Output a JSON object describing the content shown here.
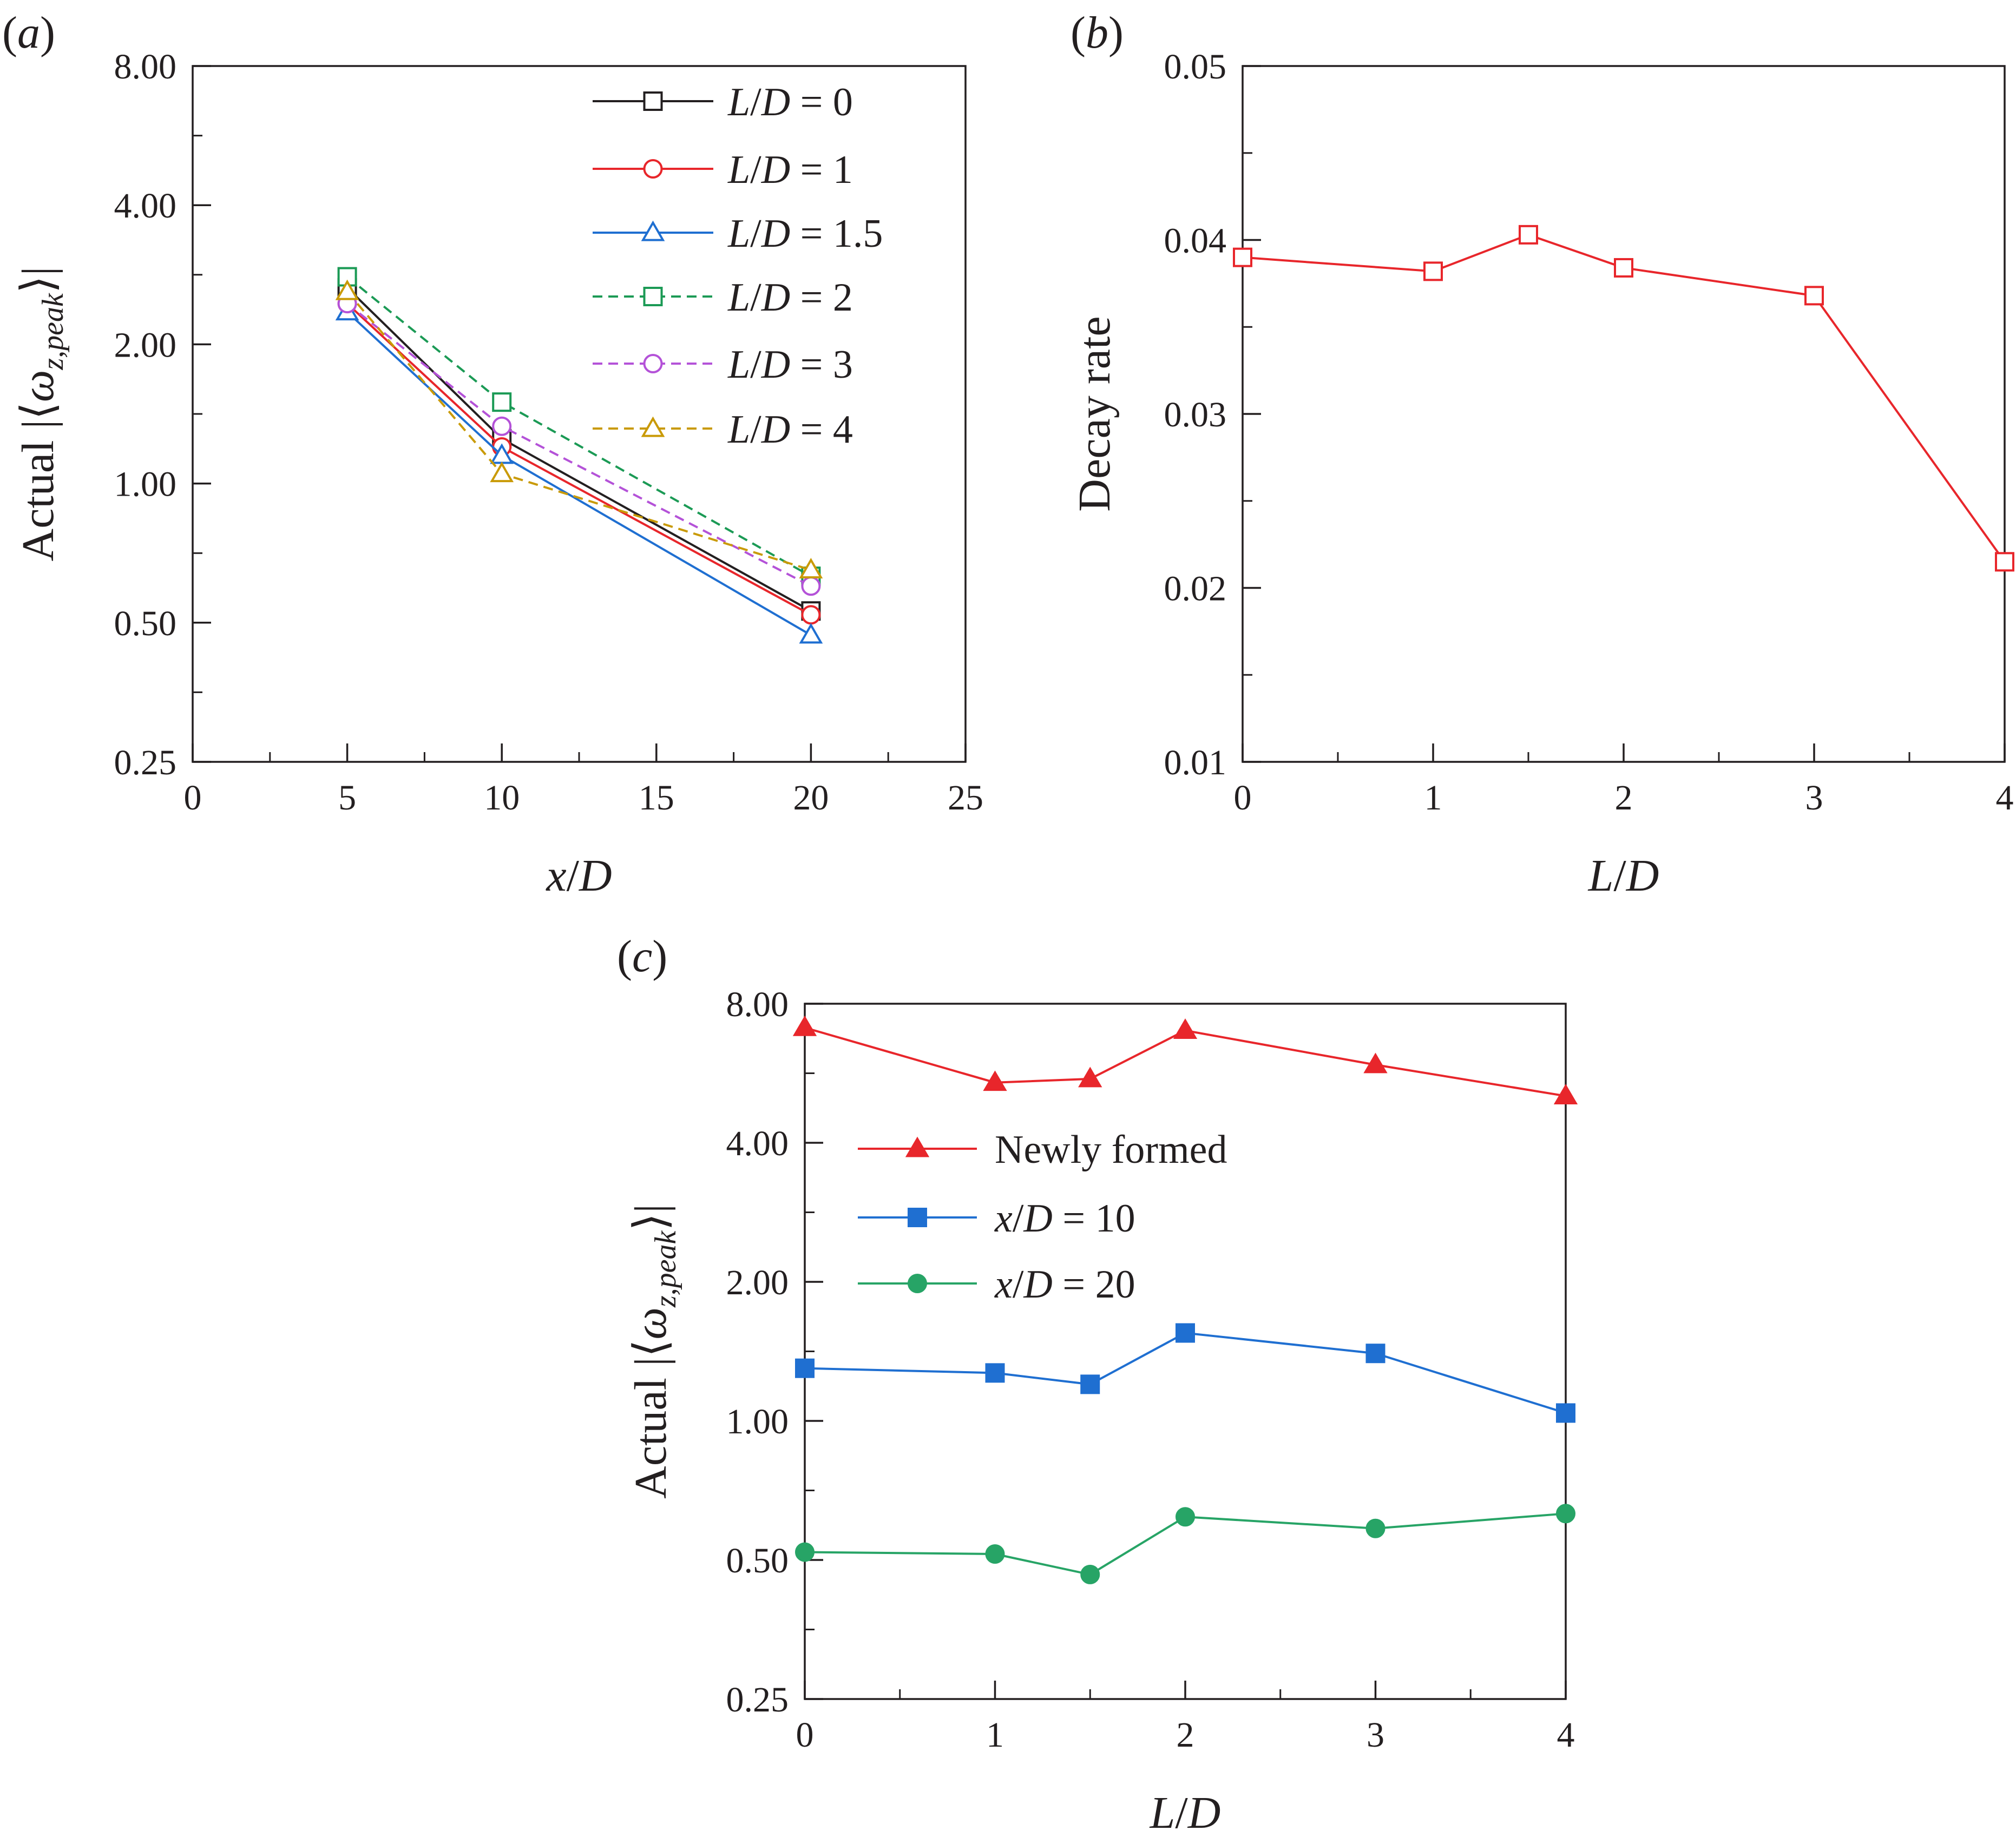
{
  "chart_data": [
    {
      "panel": "(a)",
      "panel_letter": "a",
      "type": "line",
      "xlabel_var": "x",
      "xlabel_unit": "D",
      "ylabel_prefix": "Actual",
      "ylabel_symbol": "ω",
      "ylabel_sub": "z,peak",
      "yscale": "log2",
      "xlim": [
        0,
        25
      ],
      "ylim": [
        0.25,
        8
      ],
      "xticks": [
        0,
        5,
        10,
        15,
        20,
        25
      ],
      "xtick_labels": [
        "0",
        "5",
        "10",
        "15",
        "20",
        "25"
      ],
      "yticks": [
        0.25,
        0.5,
        1,
        2,
        4,
        8
      ],
      "ytick_labels": [
        "0.25",
        "0.50",
        "1.00",
        "2.00",
        "4.00",
        "8.00"
      ],
      "legend_position": "top-right",
      "series": [
        {
          "name": "L/D = 0",
          "ld": "0",
          "x": [
            5,
            10,
            20
          ],
          "y": [
            2.65,
            1.25,
            0.53
          ],
          "color": "#231f20",
          "dash": false,
          "marker": "square"
        },
        {
          "name": "L/D = 1",
          "ld": "1",
          "x": [
            5,
            10,
            20
          ],
          "y": [
            2.45,
            1.2,
            0.52
          ],
          "color": "#e8262b",
          "dash": false,
          "marker": "circle"
        },
        {
          "name": "L/D = 1.5",
          "ld": "1.5",
          "x": [
            5,
            10,
            20
          ],
          "y": [
            2.35,
            1.15,
            0.47
          ],
          "color": "#1f6fd1",
          "dash": false,
          "marker": "triangle"
        },
        {
          "name": "L/D = 2",
          "ld": "2",
          "x": [
            5,
            10,
            20
          ],
          "y": [
            2.8,
            1.5,
            0.63
          ],
          "color": "#1b9a55",
          "dash": true,
          "marker": "square"
        },
        {
          "name": "L/D = 3",
          "ld": "3",
          "x": [
            5,
            10,
            20
          ],
          "y": [
            2.45,
            1.33,
            0.6
          ],
          "color": "#b452d8",
          "dash": true,
          "marker": "circle"
        },
        {
          "name": "L/D = 4",
          "ld": "4",
          "x": [
            5,
            10,
            20
          ],
          "y": [
            2.6,
            1.05,
            0.65
          ],
          "color": "#c99a06",
          "dash": true,
          "marker": "triangle"
        }
      ]
    },
    {
      "panel": "(b)",
      "panel_letter": "b",
      "type": "line",
      "xlabel_var": "L",
      "xlabel_unit": "D",
      "ylabel": "Decay rate",
      "yscale": "linear",
      "xlim": [
        0,
        4
      ],
      "ylim": [
        0.01,
        0.05
      ],
      "xticks": [
        0,
        1,
        2,
        3,
        4
      ],
      "xtick_labels": [
        "0",
        "1",
        "2",
        "3",
        "4"
      ],
      "yticks": [
        0.01,
        0.02,
        0.03,
        0.04,
        0.05
      ],
      "ytick_labels": [
        "0.01",
        "0.02",
        "0.03",
        "0.04",
        "0.05"
      ],
      "series": [
        {
          "x": [
            0,
            1,
            1.5,
            2,
            3,
            4
          ],
          "y": [
            0.039,
            0.0382,
            0.0403,
            0.0384,
            0.0368,
            0.0215
          ],
          "color": "#e8262b",
          "marker": "square"
        }
      ]
    },
    {
      "panel": "(c)",
      "panel_letter": "c",
      "type": "line",
      "xlabel_var": "L",
      "xlabel_unit": "D",
      "ylabel_prefix": "Actual",
      "ylabel_symbol": "ω",
      "ylabel_sub": "z,peak",
      "yscale": "log2",
      "xlim": [
        0,
        4
      ],
      "ylim": [
        0.25,
        8
      ],
      "xticks": [
        0,
        1,
        2,
        3,
        4
      ],
      "xtick_labels": [
        "0",
        "1",
        "2",
        "3",
        "4"
      ],
      "yticks": [
        0.25,
        0.5,
        1,
        2,
        4,
        8
      ],
      "ytick_labels": [
        "0.25",
        "0.50",
        "1.00",
        "2.00",
        "4.00",
        "8.00"
      ],
      "legend_position": "upper-left",
      "series": [
        {
          "name": "Newly formed",
          "x": [
            0,
            1,
            1.5,
            2,
            3,
            4
          ],
          "y": [
            7.1,
            5.4,
            5.5,
            7.0,
            5.9,
            5.05
          ],
          "color": "#e8262b",
          "marker": "triangle-filled"
        },
        {
          "name": "x/D = 10",
          "legend_var": "x",
          "legend_unit": "D",
          "legend_value": "10",
          "x": [
            0,
            1,
            1.5,
            2,
            3,
            4
          ],
          "y": [
            1.3,
            1.27,
            1.2,
            1.55,
            1.4,
            1.04
          ],
          "color": "#1f6fd1",
          "marker": "square-filled"
        },
        {
          "name": "x/D = 20",
          "legend_var": "x",
          "legend_unit": "D",
          "legend_value": "20",
          "x": [
            0,
            1,
            1.5,
            2,
            3,
            4
          ],
          "y": [
            0.52,
            0.515,
            0.465,
            0.62,
            0.585,
            0.63
          ],
          "color": "#27a466",
          "marker": "circle-filled"
        }
      ]
    }
  ]
}
